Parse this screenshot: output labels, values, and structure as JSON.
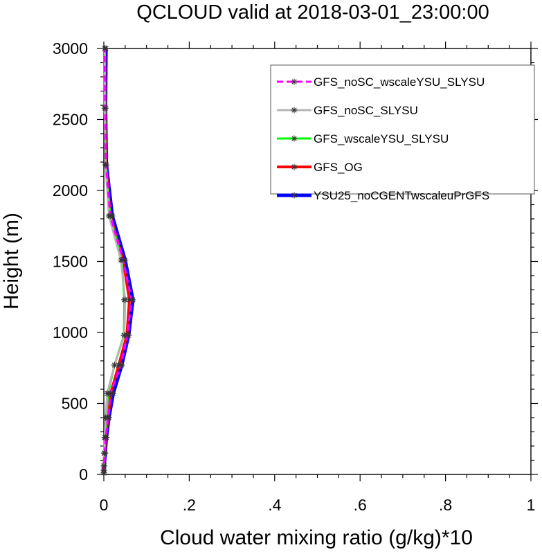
{
  "chart_data": {
    "type": "line",
    "title": "QCLOUD valid at 2018-03-01_23:00:00",
    "xlabel": "Cloud water mixing ratio (g/kg)*10",
    "ylabel": "Height (m)",
    "xlim": [
      0,
      1
    ],
    "ylim": [
      0,
      3000
    ],
    "xticks": [
      {
        "value": 0,
        "label": "0"
      },
      {
        "value": 0.2,
        "label": ".2"
      },
      {
        "value": 0.4,
        "label": ".4"
      },
      {
        "value": 0.6,
        "label": ".6"
      },
      {
        "value": 0.8,
        "label": ".8"
      },
      {
        "value": 1,
        "label": "1"
      }
    ],
    "yticks": [
      {
        "value": 0,
        "label": "0"
      },
      {
        "value": 500,
        "label": "500"
      },
      {
        "value": 1000,
        "label": "1000"
      },
      {
        "value": 1500,
        "label": "1500"
      },
      {
        "value": 2000,
        "label": "2000"
      },
      {
        "value": 2500,
        "label": "2500"
      },
      {
        "value": 3000,
        "label": "3000"
      }
    ],
    "grid": false,
    "legend_position": "top-right",
    "series": [
      {
        "name": "GFS_noSC_wscaleYSU_SLYSU",
        "color": "#ff00ff",
        "dash": "dashed",
        "width": 3,
        "points": [
          [
            0,
            10
          ],
          [
            0,
            30
          ],
          [
            0,
            60
          ],
          [
            0.002,
            150
          ],
          [
            0.004,
            260
          ],
          [
            0.01,
            400
          ],
          [
            0.015,
            570
          ],
          [
            0.04,
            770
          ],
          [
            0.055,
            980
          ],
          [
            0.065,
            1230
          ],
          [
            0.045,
            1510
          ],
          [
            0.015,
            1820
          ],
          [
            0.005,
            2180
          ],
          [
            0.003,
            2580
          ],
          [
            0.002,
            3000
          ]
        ]
      },
      {
        "name": "GFS_noSC_SLYSU",
        "color": "#b4b4b4",
        "dash": "solid",
        "width": 3,
        "points": [
          [
            0,
            10
          ],
          [
            0,
            30
          ],
          [
            0,
            60
          ],
          [
            0.001,
            150
          ],
          [
            0.002,
            260
          ],
          [
            0.004,
            400
          ],
          [
            0.008,
            570
          ],
          [
            0.025,
            770
          ],
          [
            0.048,
            980
          ],
          [
            0.05,
            1230
          ],
          [
            0.04,
            1510
          ],
          [
            0.012,
            1820
          ],
          [
            0.004,
            2180
          ],
          [
            0.002,
            2580
          ],
          [
            0.002,
            3000
          ]
        ]
      },
      {
        "name": "GFS_wscaleYSU_SLYSU",
        "color": "#00ff00",
        "dash": "solid",
        "width": 3,
        "points": [
          [
            0,
            10
          ],
          [
            0,
            30
          ],
          [
            0,
            60
          ],
          [
            0.001,
            150
          ],
          [
            0.003,
            260
          ],
          [
            0.006,
            400
          ],
          [
            0.01,
            570
          ],
          [
            0.025,
            770
          ],
          [
            0.047,
            980
          ],
          [
            0.048,
            1230
          ],
          [
            0.042,
            1510
          ],
          [
            0.015,
            1820
          ],
          [
            0.004,
            2180
          ],
          [
            0.003,
            2580
          ],
          [
            0.002,
            3000
          ]
        ]
      },
      {
        "name": "GFS_OG",
        "color": "#ff0000",
        "dash": "solid",
        "width": 4,
        "points": [
          [
            0,
            10
          ],
          [
            0,
            30
          ],
          [
            0,
            60
          ],
          [
            0.002,
            150
          ],
          [
            0.004,
            260
          ],
          [
            0.01,
            400
          ],
          [
            0.016,
            570
          ],
          [
            0.035,
            770
          ],
          [
            0.054,
            980
          ],
          [
            0.06,
            1230
          ],
          [
            0.045,
            1510
          ],
          [
            0.015,
            1820
          ],
          [
            0.005,
            2180
          ],
          [
            0.003,
            2580
          ],
          [
            0.002,
            3000
          ]
        ]
      },
      {
        "name": "YSU25_noCGENTwscaleuPrGFS",
        "color": "#0000ff",
        "dash": "solid",
        "width": 5,
        "points": [
          [
            0,
            10
          ],
          [
            0,
            30
          ],
          [
            0.001,
            60
          ],
          [
            0.003,
            150
          ],
          [
            0.006,
            260
          ],
          [
            0.012,
            400
          ],
          [
            0.022,
            570
          ],
          [
            0.042,
            770
          ],
          [
            0.058,
            980
          ],
          [
            0.068,
            1230
          ],
          [
            0.05,
            1510
          ],
          [
            0.02,
            1820
          ],
          [
            0.006,
            2180
          ],
          [
            0.004,
            2580
          ],
          [
            0.005,
            3000
          ]
        ]
      }
    ]
  }
}
